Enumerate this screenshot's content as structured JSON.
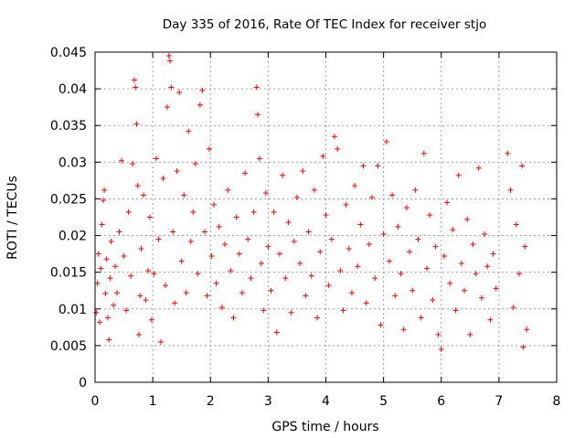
{
  "chart_data": {
    "type": "scatter",
    "title": "Day 335 of 2016, Rate Of TEC Index for receiver stjo",
    "xlabel": "GPS time / hours",
    "ylabel": "ROTI / TECUs",
    "xlim": [
      0,
      8
    ],
    "ylim": [
      0,
      0.045
    ],
    "x_ticks": [
      0,
      1,
      2,
      3,
      4,
      5,
      6,
      7,
      8
    ],
    "x_tick_labels": [
      "0",
      "1",
      "2",
      "3",
      "4",
      "5",
      "6",
      "7",
      "8"
    ],
    "y_ticks": [
      0,
      0.005,
      0.01,
      0.015,
      0.02,
      0.025,
      0.03,
      0.035,
      0.04,
      0.045
    ],
    "y_tick_labels": [
      "0",
      "0.005",
      "0.01",
      "0.015",
      "0.02",
      "0.025",
      "0.03",
      "0.035",
      "0.04",
      "0.045"
    ],
    "grid": true,
    "marker": "plus",
    "color": "#ff0000",
    "series": [
      {
        "name": "ROTI",
        "points": [
          [
            0.02,
            0.0095
          ],
          [
            0.04,
            0.0135
          ],
          [
            0.06,
            0.0175
          ],
          [
            0.08,
            0.0082
          ],
          [
            0.1,
            0.0155
          ],
          [
            0.12,
            0.0215
          ],
          [
            0.14,
            0.0248
          ],
          [
            0.16,
            0.0262
          ],
          [
            0.18,
            0.0121
          ],
          [
            0.2,
            0.0168
          ],
          [
            0.22,
            0.0088
          ],
          [
            0.24,
            0.0058
          ],
          [
            0.26,
            0.0142
          ],
          [
            0.28,
            0.0192
          ],
          [
            0.32,
            0.0105
          ],
          [
            0.35,
            0.0158
          ],
          [
            0.38,
            0.0122
          ],
          [
            0.42,
            0.0205
          ],
          [
            0.46,
            0.0302
          ],
          [
            0.5,
            0.0172
          ],
          [
            0.54,
            0.0098
          ],
          [
            0.58,
            0.0232
          ],
          [
            0.62,
            0.0145
          ],
          [
            0.65,
            0.0298
          ],
          [
            0.68,
            0.0412
          ],
          [
            0.7,
            0.0402
          ],
          [
            0.72,
            0.0352
          ],
          [
            0.74,
            0.0268
          ],
          [
            0.76,
            0.0065
          ],
          [
            0.78,
            0.0118
          ],
          [
            0.8,
            0.0182
          ],
          [
            0.84,
            0.0255
          ],
          [
            0.88,
            0.0112
          ],
          [
            0.92,
            0.0152
          ],
          [
            0.95,
            0.0225
          ],
          [
            0.98,
            0.0085
          ],
          [
            1.02,
            0.0148
          ],
          [
            1.06,
            0.0305
          ],
          [
            1.1,
            0.0195
          ],
          [
            1.14,
            0.0055
          ],
          [
            1.18,
            0.0278
          ],
          [
            1.22,
            0.0132
          ],
          [
            1.25,
            0.0375
          ],
          [
            1.28,
            0.0445
          ],
          [
            1.3,
            0.0438
          ],
          [
            1.32,
            0.0402
          ],
          [
            1.35,
            0.0205
          ],
          [
            1.38,
            0.0108
          ],
          [
            1.42,
            0.0288
          ],
          [
            1.46,
            0.0395
          ],
          [
            1.5,
            0.0165
          ],
          [
            1.54,
            0.0255
          ],
          [
            1.58,
            0.0122
          ],
          [
            1.62,
            0.0342
          ],
          [
            1.66,
            0.0192
          ],
          [
            1.7,
            0.0232
          ],
          [
            1.74,
            0.0298
          ],
          [
            1.78,
            0.0148
          ],
          [
            1.82,
            0.0378
          ],
          [
            1.86,
            0.0398
          ],
          [
            1.9,
            0.0205
          ],
          [
            1.94,
            0.0118
          ],
          [
            1.98,
            0.0318
          ],
          [
            2.02,
            0.0172
          ],
          [
            2.06,
            0.0242
          ],
          [
            2.1,
            0.0135
          ],
          [
            2.15,
            0.0212
          ],
          [
            2.2,
            0.0102
          ],
          [
            2.25,
            0.0188
          ],
          [
            2.3,
            0.0262
          ],
          [
            2.35,
            0.0152
          ],
          [
            2.4,
            0.0088
          ],
          [
            2.45,
            0.0225
          ],
          [
            2.5,
            0.0175
          ],
          [
            2.55,
            0.0122
          ],
          [
            2.6,
            0.0285
          ],
          [
            2.65,
            0.0195
          ],
          [
            2.7,
            0.0142
          ],
          [
            2.75,
            0.0232
          ],
          [
            2.8,
            0.0402
          ],
          [
            2.82,
            0.0365
          ],
          [
            2.85,
            0.0305
          ],
          [
            2.88,
            0.0162
          ],
          [
            2.92,
            0.0098
          ],
          [
            2.96,
            0.0258
          ],
          [
            3.0,
            0.0185
          ],
          [
            3.05,
            0.0125
          ],
          [
            3.1,
            0.0232
          ],
          [
            3.15,
            0.0068
          ],
          [
            3.2,
            0.0175
          ],
          [
            3.25,
            0.0282
          ],
          [
            3.3,
            0.0142
          ],
          [
            3.35,
            0.0218
          ],
          [
            3.4,
            0.0095
          ],
          [
            3.45,
            0.0192
          ],
          [
            3.5,
            0.0252
          ],
          [
            3.55,
            0.0162
          ],
          [
            3.6,
            0.0288
          ],
          [
            3.65,
            0.0118
          ],
          [
            3.7,
            0.0205
          ],
          [
            3.75,
            0.0145
          ],
          [
            3.8,
            0.0262
          ],
          [
            3.85,
            0.0088
          ],
          [
            3.9,
            0.0178
          ],
          [
            3.95,
            0.0308
          ],
          [
            4.0,
            0.0228
          ],
          [
            4.05,
            0.0132
          ],
          [
            4.1,
            0.0195
          ],
          [
            4.15,
            0.0335
          ],
          [
            4.2,
            0.0318
          ],
          [
            4.25,
            0.0152
          ],
          [
            4.3,
            0.0098
          ],
          [
            4.35,
            0.0242
          ],
          [
            4.4,
            0.0182
          ],
          [
            4.45,
            0.0122
          ],
          [
            4.5,
            0.0268
          ],
          [
            4.55,
            0.0158
          ],
          [
            4.6,
            0.0215
          ],
          [
            4.65,
            0.0295
          ],
          [
            4.7,
            0.0108
          ],
          [
            4.75,
            0.0188
          ],
          [
            4.8,
            0.0252
          ],
          [
            4.85,
            0.0142
          ],
          [
            4.9,
            0.0295
          ],
          [
            4.95,
            0.0078
          ],
          [
            5.0,
            0.0202
          ],
          [
            5.05,
            0.0328
          ],
          [
            5.1,
            0.0165
          ],
          [
            5.15,
            0.0255
          ],
          [
            5.2,
            0.0118
          ],
          [
            5.25,
            0.0212
          ],
          [
            5.3,
            0.0148
          ],
          [
            5.35,
            0.0072
          ],
          [
            5.4,
            0.0238
          ],
          [
            5.45,
            0.0178
          ],
          [
            5.5,
            0.0125
          ],
          [
            5.55,
            0.0262
          ],
          [
            5.6,
            0.0195
          ],
          [
            5.65,
            0.0088
          ],
          [
            5.7,
            0.0312
          ],
          [
            5.75,
            0.0155
          ],
          [
            5.8,
            0.0228
          ],
          [
            5.85,
            0.0112
          ],
          [
            5.9,
            0.0185
          ],
          [
            5.95,
            0.0065
          ],
          [
            6.0,
            0.0045
          ],
          [
            6.05,
            0.0172
          ],
          [
            6.1,
            0.0245
          ],
          [
            6.15,
            0.0135
          ],
          [
            6.2,
            0.0208
          ],
          [
            6.25,
            0.0098
          ],
          [
            6.3,
            0.0282
          ],
          [
            6.35,
            0.0162
          ],
          [
            6.4,
            0.0125
          ],
          [
            6.45,
            0.0222
          ],
          [
            6.5,
            0.0065
          ],
          [
            6.55,
            0.0188
          ],
          [
            6.6,
            0.0148
          ],
          [
            6.65,
            0.0292
          ],
          [
            6.7,
            0.0115
          ],
          [
            6.75,
            0.0202
          ],
          [
            6.8,
            0.0158
          ],
          [
            6.85,
            0.0085
          ],
          [
            6.9,
            0.0175
          ],
          [
            6.95,
            0.0128
          ],
          [
            7.15,
            0.0312
          ],
          [
            7.2,
            0.0262
          ],
          [
            7.25,
            0.0102
          ],
          [
            7.3,
            0.0215
          ],
          [
            7.35,
            0.0148
          ],
          [
            7.4,
            0.0295
          ],
          [
            7.42,
            0.0048
          ],
          [
            7.45,
            0.0185
          ],
          [
            7.48,
            0.0072
          ]
        ]
      }
    ]
  }
}
